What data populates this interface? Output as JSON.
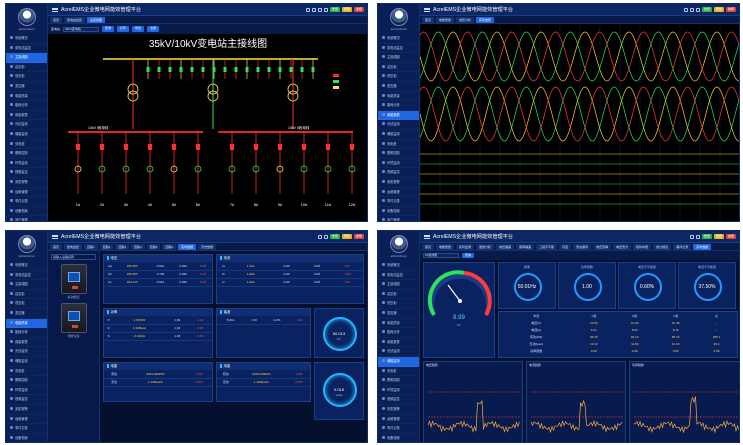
{
  "app": {
    "title": "AcrelEMS企业微电网能效管理平台",
    "user": "admin/Acrel"
  },
  "top_chips": [
    "告警",
    "预警",
    "故障"
  ],
  "sidebar_items": [
    "系统概况",
    "变电站监控",
    "主接线图",
    "高压柜",
    "低压柜",
    "变压器",
    "电能质量",
    "能耗分析",
    "用能报表",
    "光伏监测",
    "储能监测",
    "充电桩",
    "照明控制",
    "环境监测",
    "视频监控",
    "安防报警",
    "运维管理",
    "事件记录",
    "设备档案",
    "用户管理",
    "系统设置"
  ],
  "panel1": {
    "tabs": [
      "首页",
      "变电站监控",
      "主接线图"
    ],
    "filter_label": "变电站",
    "filter_value": "35kV变电站",
    "buttons": [
      "查询",
      "打印",
      "导出",
      "全屏"
    ],
    "diagram_title": "35kV/10kV变电站主接线图",
    "bus_left": "10kV I段母线",
    "bus_right": "10kV II段母线",
    "feeders": [
      "1#",
      "2#",
      "3#",
      "4#",
      "5#",
      "6#",
      "7#",
      "8#",
      "9#",
      "10#",
      "11#",
      "12#"
    ]
  },
  "panel2": {
    "tabs": [
      "首页",
      "电能质量",
      "波形分析",
      "实时波形"
    ],
    "wave_colors": [
      "#ffd21f",
      "#2ee05b",
      "#ff3b3b"
    ]
  },
  "panel3": {
    "tabs": [
      "首页",
      "配电监控",
      "回路1",
      "回路2",
      "回路3",
      "回路4",
      "回路5",
      "回路6",
      "实时数据",
      "历史数据"
    ],
    "search_placeholder": "请输入设备名称",
    "meter_labels": [
      "多功能表",
      "智能仪表"
    ],
    "card_a": {
      "title": "电压",
      "rows": [
        [
          "Ua",
          "220.56V",
          "0.021",
          "0.023",
          "0.00"
        ],
        [
          "Ub",
          "220.65V",
          "0.736",
          "0.020",
          "0.01"
        ],
        [
          "Uc",
          "220.41V",
          "0.014",
          "0.025",
          "0.02"
        ]
      ]
    },
    "card_b": {
      "title": "电流",
      "rows": [
        [
          "Ia",
          "1.11A",
          "0.00",
          "0.00",
          "0.07"
        ],
        [
          "Ib",
          "1.03A",
          "0.00",
          "0.00",
          "0.03"
        ],
        [
          "Ic",
          "1.02A",
          "0.00",
          "0.00",
          "0.01"
        ]
      ]
    },
    "card_c": {
      "title": "功率",
      "rows": [
        [
          "P",
          "1.667kW",
          "1.09",
          "1.32"
        ],
        [
          "Q",
          "1.345kvar",
          "1.02",
          "0.15"
        ],
        [
          "S",
          "2.14kVA",
          "1.18",
          "0.03"
        ]
      ]
    },
    "card_d": {
      "title": "电能",
      "rows": [
        [
          "有功",
          "3184.000kWh",
          "1.037"
        ],
        [
          "无功",
          "1.100kvarh",
          "0.071"
        ]
      ]
    },
    "card_e": {
      "title": "谐波",
      "rows": [
        [
          "THDu",
          "1.50",
          "4.371",
          "1.62"
        ]
      ]
    },
    "gauge_1": {
      "value": "50.013",
      "unit": "Hz"
    },
    "gauge_2": {
      "value": "0.015",
      "unit": "cosφ"
    }
  },
  "panel4": {
    "tabs": [
      "首页",
      "电能质量",
      "实时监测",
      "谐波分析",
      "电压偏差",
      "频率偏差",
      "三相不平衡",
      "闪变",
      "暂态事件",
      "电压暂降",
      "电压暂升",
      "短时中断",
      "统计报表",
      "事件记录",
      "实时数据"
    ],
    "select_value": "1#进线柜",
    "main_gauge": {
      "value": "8.99",
      "unit": "kV"
    },
    "rings": [
      {
        "title": "频率",
        "value": "50.01Hz"
      },
      {
        "title": "功率因数",
        "value": "1.00"
      },
      {
        "title": "电压不平衡度",
        "value": "0.60%"
      },
      {
        "title": "电流不平衡度",
        "value": "37.50%"
      }
    ],
    "table_head": [
      "参数",
      "A相",
      "B相",
      "C相",
      "总"
    ],
    "table_rows": [
      [
        "电压(V)",
        "10.50",
        "10.46",
        "10.48",
        "--"
      ],
      [
        "电流(A)",
        "8.21",
        "8.03",
        "8.16",
        "--"
      ],
      [
        "有功(kW)",
        "86.20",
        "84.10",
        "85.40",
        "255.7"
      ],
      [
        "无功(kvar)",
        "12.10",
        "11.80",
        "12.30",
        "36.2"
      ],
      [
        "功率因数",
        "0.99",
        "0.99",
        "0.99",
        "0.99"
      ]
    ],
    "charts": [
      "电压趋势",
      "电流趋势",
      "功率趋势"
    ]
  }
}
